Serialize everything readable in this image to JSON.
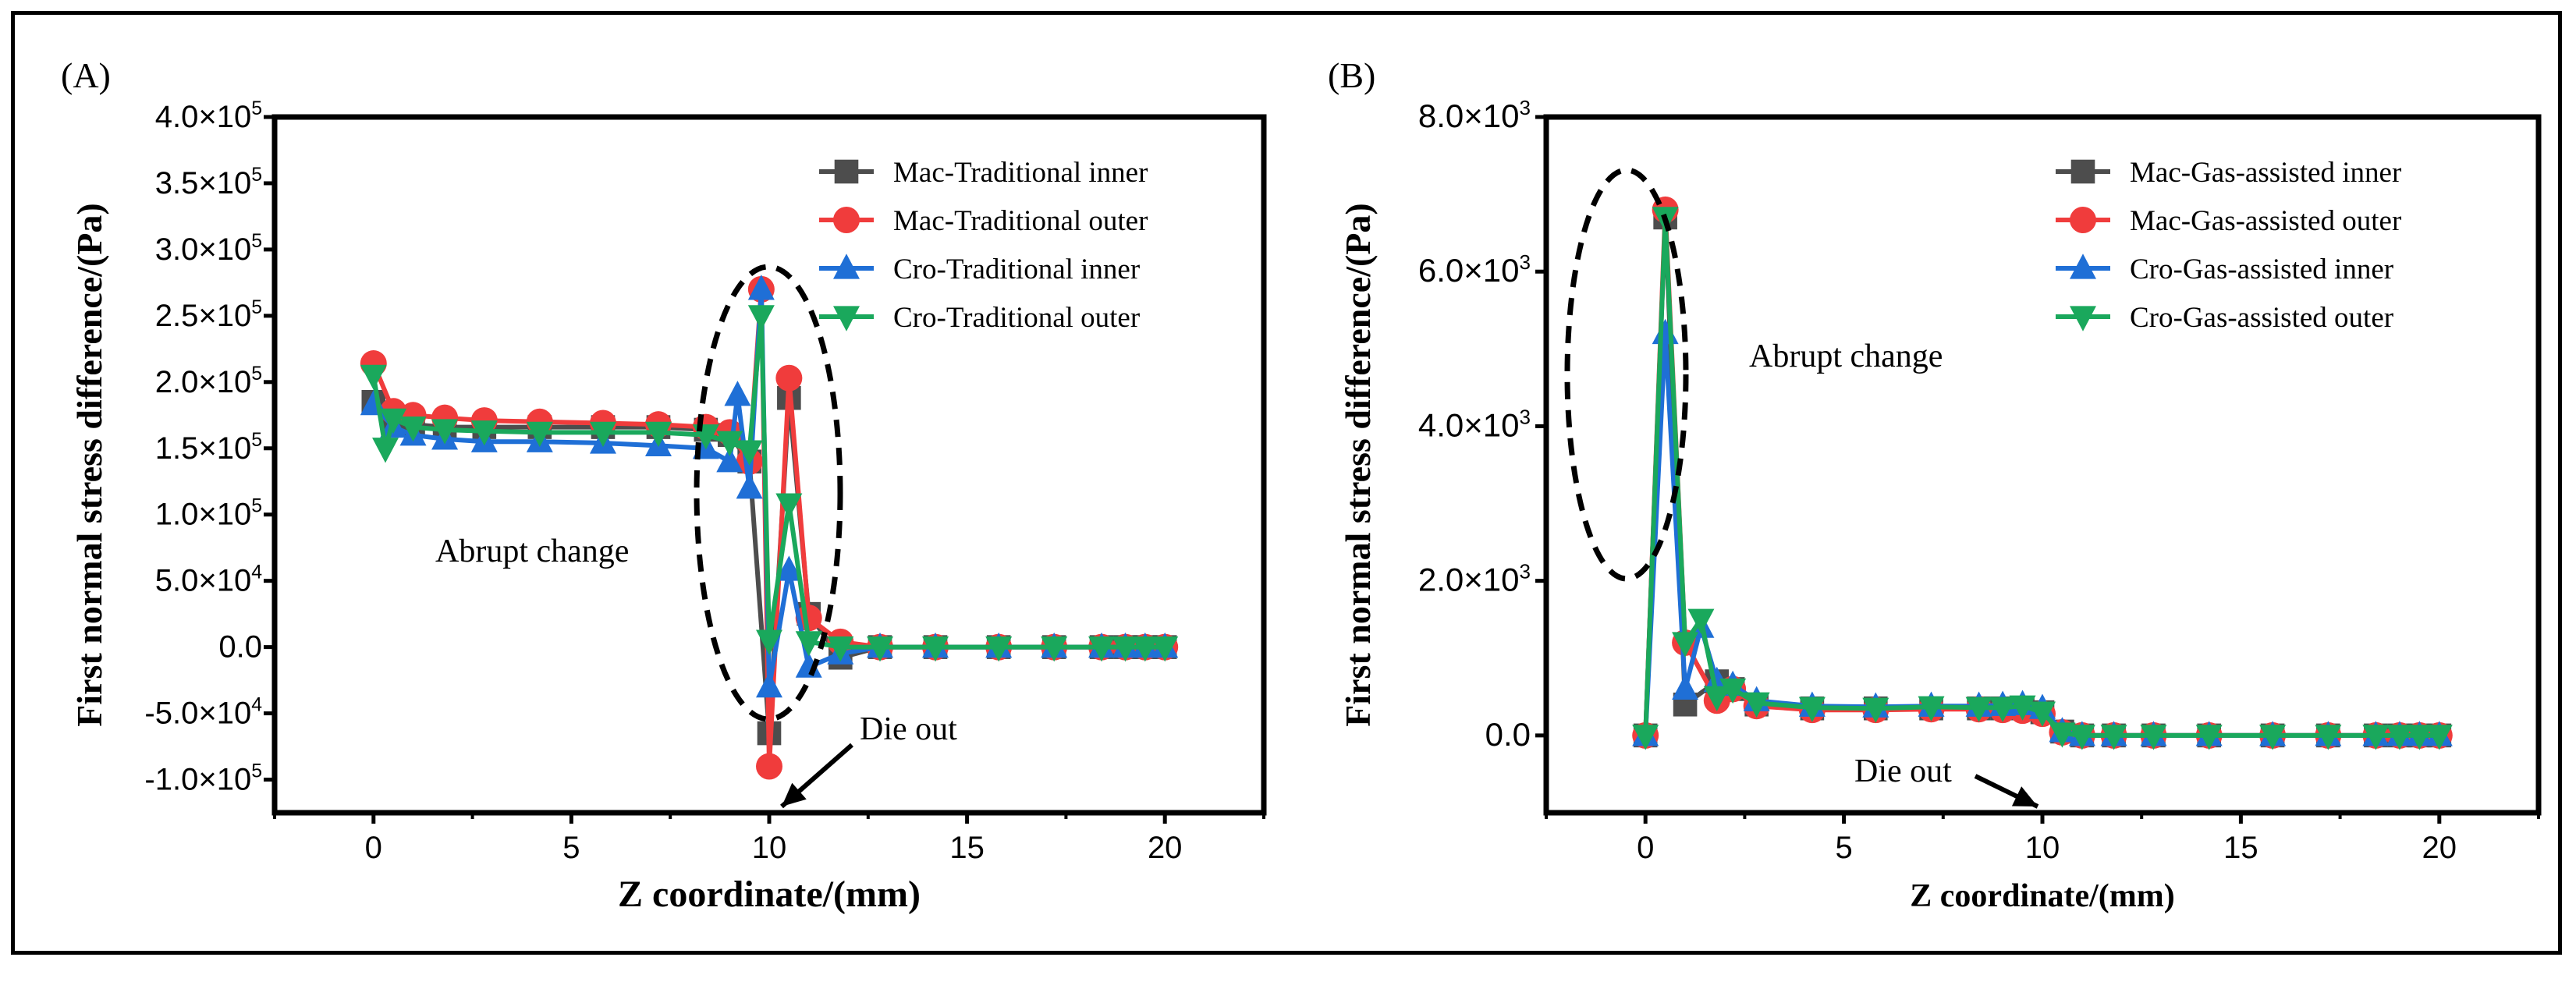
{
  "chart_data": [
    {
      "panel_label": "(A)",
      "type": "line",
      "xlabel": "Z coordinate/(mm)",
      "ylabel": "First normal stress difference/(Pa)",
      "xlim": [
        -2.5,
        22.5
      ],
      "ylim": [
        -125000,
        400000
      ],
      "xticks": [
        0,
        5,
        10,
        15,
        20
      ],
      "yticks": [
        {
          "v": 400000,
          "m": "4.0",
          "e": "5"
        },
        {
          "v": 350000,
          "m": "3.5",
          "e": "5"
        },
        {
          "v": 300000,
          "m": "3.0",
          "e": "5"
        },
        {
          "v": 250000,
          "m": "2.5",
          "e": "5"
        },
        {
          "v": 200000,
          "m": "2.0",
          "e": "5"
        },
        {
          "v": 150000,
          "m": "1.5",
          "e": "5"
        },
        {
          "v": 100000,
          "m": "1.0",
          "e": "5"
        },
        {
          "v": 50000,
          "m": "5.0",
          "e": "4"
        },
        {
          "v": 0,
          "m": "0.0",
          "e": ""
        },
        {
          "v": -50000,
          "m": "-5.0",
          "e": "4"
        },
        {
          "v": -100000,
          "m": "-1.0",
          "e": "5"
        }
      ],
      "legend_position": "top-right",
      "annotations": {
        "abrupt": "Abrupt change",
        "die": "Die out"
      },
      "series": [
        {
          "name": "Mac-Traditional inner",
          "color": "#4d4d4d",
          "marker": "square",
          "x": [
            0,
            0.5,
            1,
            1.8,
            2.8,
            4.2,
            5.8,
            7.2,
            8.4,
            9,
            9.5,
            10,
            10.5,
            11,
            11.8,
            12.8,
            14.2,
            15.8,
            17.2,
            18.4,
            19,
            19.5,
            20
          ],
          "y": [
            185000,
            170000,
            168000,
            166000,
            166000,
            166000,
            166000,
            166000,
            164000,
            160000,
            140000,
            -65000,
            188000,
            25000,
            -8000,
            0,
            0,
            0,
            0,
            0,
            0,
            0,
            0
          ]
        },
        {
          "name": "Mac-Traditional outer",
          "color": "#f03c3c",
          "marker": "circle",
          "x": [
            0,
            0.5,
            1,
            1.8,
            2.8,
            4.2,
            5.8,
            7.2,
            8.4,
            9,
            9.5,
            9.8,
            10,
            10.5,
            11,
            11.8,
            12.8,
            14.2,
            15.8,
            17.2,
            18.4,
            19,
            19.5,
            20
          ],
          "y": [
            214000,
            178000,
            175000,
            173000,
            171000,
            170000,
            169000,
            168000,
            166000,
            162000,
            140000,
            270000,
            -90000,
            203000,
            22000,
            4000,
            0,
            0,
            0,
            0,
            0,
            0,
            0,
            0
          ]
        },
        {
          "name": "Cro-Traditional inner",
          "color": "#1f6fd6",
          "marker": "triangle-up",
          "x": [
            0,
            0.5,
            1,
            1.8,
            2.8,
            4.2,
            5.8,
            7.2,
            8.4,
            9,
            9.2,
            9.5,
            9.8,
            10,
            10.5,
            11,
            11.8,
            12.8,
            14.2,
            15.8,
            17.2,
            18.4,
            19,
            19.5,
            20
          ],
          "y": [
            183000,
            166000,
            160000,
            157000,
            155000,
            155000,
            154000,
            152000,
            150000,
            140000,
            190000,
            120000,
            270000,
            -30000,
            58000,
            -15000,
            -5000,
            0,
            0,
            0,
            0,
            0,
            0,
            0,
            0
          ]
        },
        {
          "name": "Cro-Traditional outer",
          "color": "#1aa85c",
          "marker": "triangle-down",
          "x": [
            0,
            0.3,
            0.5,
            1,
            1.8,
            2.8,
            4.2,
            5.8,
            7.2,
            8.4,
            9,
            9.5,
            9.8,
            10,
            10.5,
            11,
            11.8,
            12.8,
            14.2,
            15.8,
            17.2,
            18.4,
            19,
            19.5,
            20
          ],
          "y": [
            205000,
            150000,
            172000,
            166000,
            164000,
            163000,
            162000,
            162000,
            162000,
            160000,
            155000,
            148000,
            250000,
            5000,
            108000,
            4000,
            0,
            0,
            0,
            0,
            0,
            0,
            0,
            0,
            0
          ]
        }
      ]
    },
    {
      "panel_label": "(B)",
      "type": "line",
      "xlabel": "Z coordinate/(mm)",
      "ylabel": "First normal stress difference/(Pa)",
      "xlim": [
        -2.5,
        22.5
      ],
      "ylim": [
        -1000,
        8000
      ],
      "xticks": [
        0,
        5,
        10,
        15,
        20
      ],
      "yticks": [
        {
          "v": 8000,
          "m": "8.0",
          "e": "3"
        },
        {
          "v": 6000,
          "m": "6.0",
          "e": "3"
        },
        {
          "v": 4000,
          "m": "4.0",
          "e": "3"
        },
        {
          "v": 2000,
          "m": "2.0",
          "e": "3"
        },
        {
          "v": 0,
          "m": "0.0",
          "e": ""
        }
      ],
      "legend_position": "top-right",
      "annotations": {
        "abrupt": "Abrupt change",
        "die": "Die out"
      },
      "series": [
        {
          "name": "Mac-Gas-assisted inner",
          "color": "#4d4d4d",
          "marker": "square",
          "x": [
            0,
            0.5,
            1,
            1.8,
            2.2,
            2.8,
            4.2,
            5.8,
            7.2,
            8.4,
            9,
            9.5,
            10,
            10.5,
            11,
            11.8,
            12.8,
            14.2,
            15.8,
            17.2,
            18.4,
            19,
            19.5,
            20
          ],
          "y": [
            0,
            6700,
            400,
            700,
            600,
            400,
            350,
            350,
            350,
            350,
            350,
            350,
            300,
            50,
            0,
            0,
            0,
            0,
            0,
            0,
            0,
            0,
            0,
            0
          ]
        },
        {
          "name": "Mac-Gas-assisted outer",
          "color": "#f03c3c",
          "marker": "circle",
          "x": [
            0,
            0.5,
            1,
            1.8,
            2.2,
            2.8,
            4.2,
            5.8,
            7.2,
            8.4,
            9,
            9.5,
            10,
            10.5,
            11,
            11.8,
            12.8,
            14.2,
            15.8,
            17.2,
            18.4,
            19,
            19.5,
            20
          ],
          "y": [
            0,
            6800,
            1200,
            450,
            600,
            380,
            330,
            330,
            340,
            340,
            330,
            320,
            280,
            40,
            0,
            0,
            0,
            0,
            0,
            0,
            0,
            0,
            0,
            0
          ]
        },
        {
          "name": "Cro-Gas-assisted inner",
          "color": "#1f6fd6",
          "marker": "triangle-up",
          "x": [
            0,
            0.5,
            1,
            1.4,
            1.8,
            2.2,
            2.8,
            4.2,
            5.8,
            7.2,
            8.4,
            9,
            9.5,
            10,
            10.5,
            11,
            11.8,
            12.8,
            14.2,
            15.8,
            17.2,
            18.4,
            19,
            19.5,
            20
          ],
          "y": [
            0,
            5200,
            600,
            1400,
            700,
            650,
            450,
            380,
            370,
            380,
            380,
            390,
            400,
            350,
            50,
            0,
            0,
            0,
            0,
            0,
            0,
            0,
            0,
            0,
            0
          ]
        },
        {
          "name": "Cro-Gas-assisted outer",
          "color": "#1aa85c",
          "marker": "triangle-down",
          "x": [
            0,
            0.5,
            1,
            1.4,
            1.8,
            2.2,
            2.8,
            4.2,
            5.8,
            7.2,
            8.4,
            9,
            9.5,
            10,
            10.5,
            11,
            11.8,
            12.8,
            14.2,
            15.8,
            17.2,
            18.4,
            19,
            19.5,
            20
          ],
          "y": [
            0,
            6700,
            1200,
            1500,
            500,
            600,
            420,
            360,
            350,
            370,
            360,
            360,
            380,
            300,
            30,
            0,
            0,
            0,
            0,
            0,
            0,
            0,
            0,
            0,
            0
          ]
        }
      ]
    }
  ]
}
